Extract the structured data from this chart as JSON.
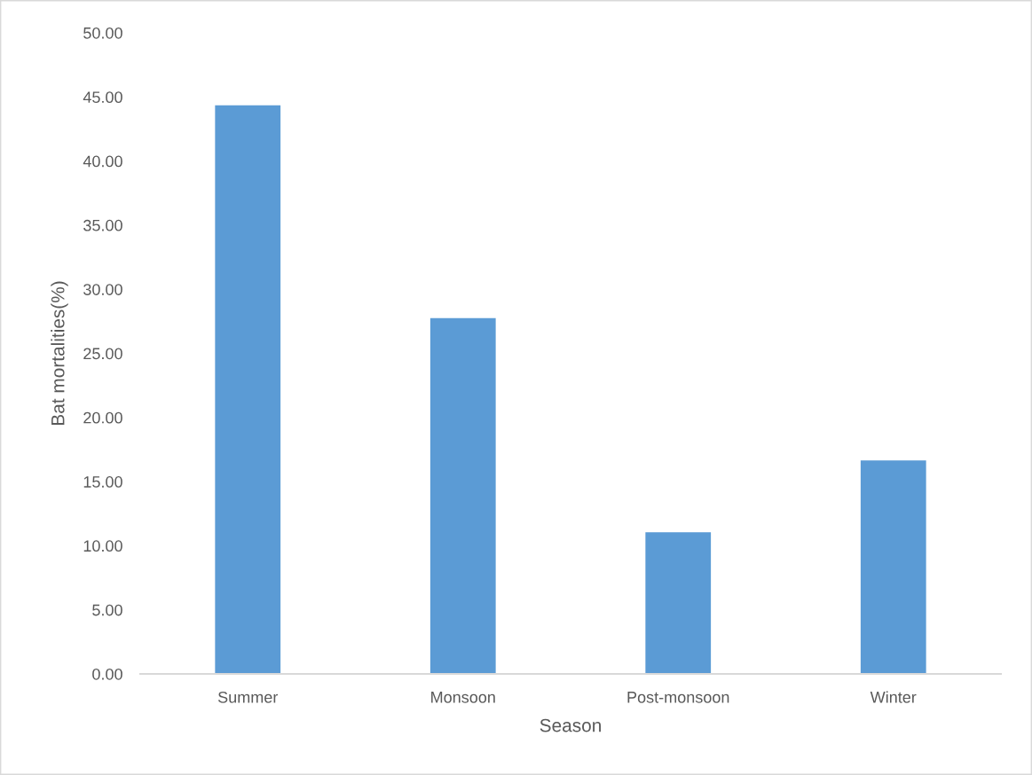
{
  "chart_data": {
    "type": "bar",
    "xlabel": "Season",
    "ylabel": "Bat mortalities(%)",
    "categories": [
      "Summer",
      "Monsoon",
      "Post-monsoon",
      "Winter"
    ],
    "values": [
      44.4,
      27.8,
      11.1,
      16.7
    ],
    "color": "#5b9bd5",
    "ylim": [
      0,
      50
    ],
    "yticks": [
      {
        "value": 0,
        "label": "0.00"
      },
      {
        "value": 5,
        "label": "5.00"
      },
      {
        "value": 10,
        "label": "10.00"
      },
      {
        "value": 15,
        "label": "15.00"
      },
      {
        "value": 20,
        "label": "20.00"
      },
      {
        "value": 25,
        "label": "25.00"
      },
      {
        "value": 30,
        "label": "30.00"
      },
      {
        "value": 35,
        "label": "35.00"
      },
      {
        "value": 40,
        "label": "40.00"
      },
      {
        "value": 45,
        "label": "45.00"
      },
      {
        "value": 50,
        "label": "50.00"
      }
    ],
    "grid": false
  }
}
